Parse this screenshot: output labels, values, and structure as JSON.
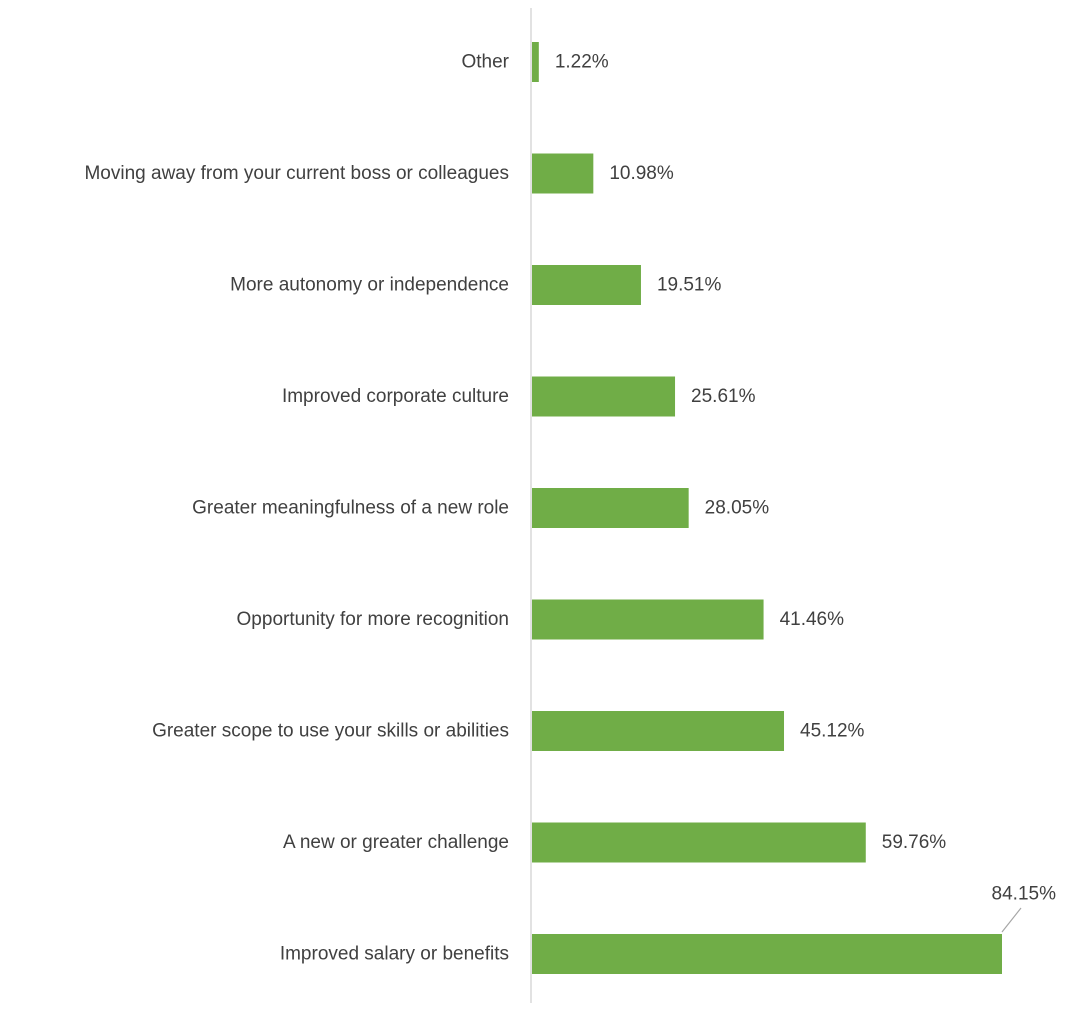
{
  "chart_data": {
    "type": "bar",
    "orientation": "horizontal",
    "categories": [
      "Other",
      "Moving away from your current boss or colleagues",
      "More autonomy or independence",
      "Improved corporate culture",
      "Greater meaningfulness of a new role",
      "Opportunity for more recognition",
      "Greater scope to use your skills or abilities",
      "A new or greater challenge",
      "Improved salary or benefits"
    ],
    "values": [
      1.22,
      10.98,
      19.51,
      25.61,
      28.05,
      41.46,
      45.12,
      59.76,
      84.15
    ],
    "value_labels": [
      "1.22%",
      "10.98%",
      "19.51%",
      "25.61%",
      "28.05%",
      "41.46%",
      "45.12%",
      "59.76%",
      "84.15%"
    ],
    "bar_color": "#70ad47",
    "axis_color": "#d9d9d9",
    "label_color": "#404040",
    "xlim": [
      0,
      84.15
    ],
    "grid": false,
    "legend": "none"
  }
}
